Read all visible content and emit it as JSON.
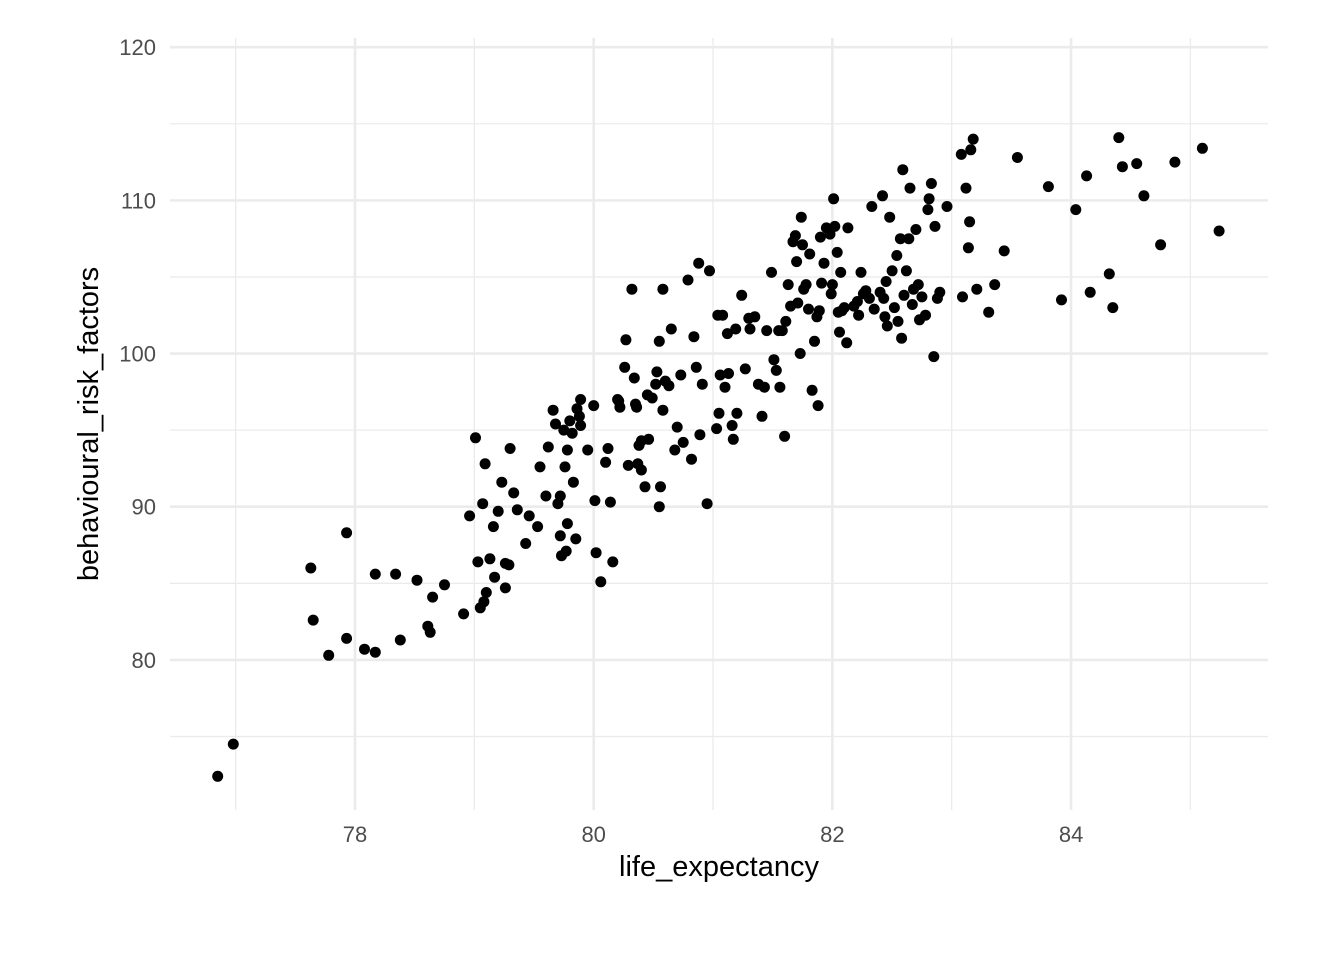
{
  "chart_data": {
    "type": "scatter",
    "title": "",
    "xlabel": "life_expectancy",
    "ylabel": "behavioural_risk_factors",
    "xlim": [
      76.45,
      85.65
    ],
    "ylim": [
      70.2,
      120.6
    ],
    "x_ticks": [
      78,
      80,
      82,
      84
    ],
    "x_tick_labels": [
      "78",
      "80",
      "82",
      "84"
    ],
    "x_minor": [
      77,
      79,
      81,
      83,
      85
    ],
    "y_ticks": [
      80,
      90,
      100,
      110,
      120
    ],
    "y_tick_labels": [
      "80",
      "90",
      "100",
      "110",
      "120"
    ],
    "y_minor": [
      75,
      85,
      95,
      105,
      115
    ],
    "grid": true,
    "legend": "none",
    "point_color": "#000000",
    "x": [
      76.85,
      76.98,
      77.63,
      77.65,
      77.78,
      77.93,
      77.93,
      78.08,
      78.17,
      78.17,
      78.34,
      78.38,
      78.52,
      78.61,
      78.63,
      78.65,
      78.75,
      78.91,
      78.96,
      79.01,
      79.03,
      79.05,
      79.07,
      79.08,
      79.09,
      79.1,
      79.13,
      79.16,
      79.17,
      79.2,
      79.23,
      79.26,
      79.26,
      79.29,
      79.3,
      79.33,
      79.36,
      79.43,
      79.46,
      79.53,
      79.55,
      79.6,
      79.62,
      79.66,
      79.68,
      79.7,
      79.72,
      79.72,
      79.73,
      79.75,
      79.76,
      79.77,
      79.78,
      79.78,
      79.8,
      79.82,
      79.83,
      79.85,
      79.86,
      79.88,
      79.89,
      79.89,
      79.95,
      80.0,
      80.01,
      80.02,
      80.06,
      80.1,
      80.12,
      80.14,
      80.16,
      80.2,
      80.21,
      80.22,
      80.26,
      80.27,
      80.29,
      80.32,
      80.34,
      80.35,
      80.36,
      80.37,
      80.38,
      80.4,
      80.4,
      80.43,
      80.45,
      80.46,
      80.49,
      80.52,
      80.53,
      80.55,
      80.55,
      80.56,
      80.58,
      80.58,
      80.6,
      80.63,
      80.65,
      80.68,
      80.7,
      80.73,
      80.75,
      80.79,
      80.82,
      80.84,
      80.86,
      80.88,
      80.89,
      80.91,
      80.95,
      80.97,
      81.03,
      81.04,
      81.05,
      81.06,
      81.08,
      81.1,
      81.12,
      81.13,
      81.16,
      81.17,
      81.19,
      81.2,
      81.24,
      81.27,
      81.3,
      81.31,
      81.35,
      81.38,
      81.41,
      81.43,
      81.45,
      81.49,
      81.51,
      81.53,
      81.55,
      81.56,
      81.58,
      81.6,
      81.61,
      81.63,
      81.65,
      81.67,
      81.69,
      81.7,
      81.71,
      81.73,
      81.74,
      81.75,
      81.76,
      81.78,
      81.8,
      81.81,
      81.83,
      81.85,
      81.87,
      81.88,
      81.89,
      81.9,
      81.91,
      81.93,
      81.95,
      81.98,
      81.99,
      82.0,
      82.01,
      82.02,
      82.04,
      82.05,
      82.06,
      82.07,
      82.08,
      82.1,
      82.12,
      82.13,
      82.18,
      82.21,
      82.22,
      82.24,
      82.26,
      82.28,
      82.31,
      82.33,
      82.35,
      82.4,
      82.42,
      82.43,
      82.44,
      82.45,
      82.46,
      82.48,
      82.5,
      82.52,
      82.54,
      82.55,
      82.57,
      82.58,
      82.59,
      82.6,
      82.62,
      82.64,
      82.65,
      82.67,
      82.68,
      82.7,
      82.72,
      82.73,
      82.75,
      82.78,
      82.8,
      82.81,
      82.83,
      82.85,
      82.86,
      82.88,
      82.9,
      82.96,
      83.08,
      83.09,
      83.12,
      83.14,
      83.15,
      83.16,
      83.18,
      83.21,
      83.31,
      83.36,
      83.44,
      83.55,
      83.81,
      83.92,
      84.04,
      84.13,
      84.16,
      84.32,
      84.35,
      84.4,
      84.43,
      84.55,
      84.61,
      84.75,
      84.87,
      85.1,
      85.24
    ]
  }
}
